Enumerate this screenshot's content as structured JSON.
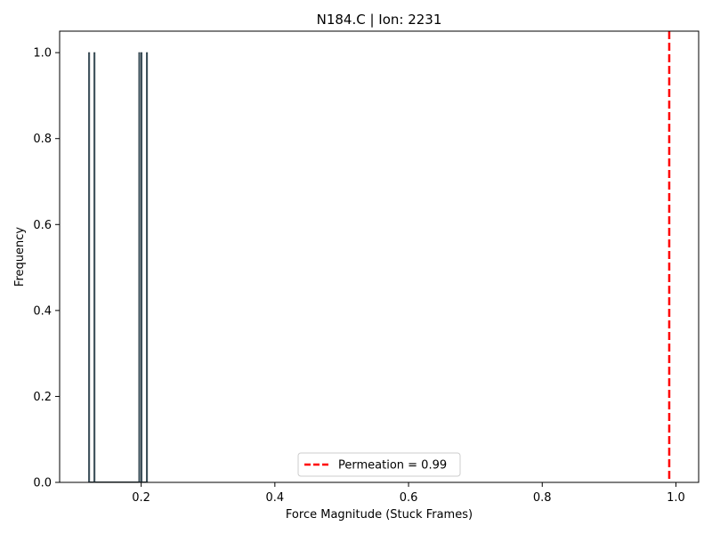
{
  "chart_data": {
    "type": "bar",
    "title": "N184.C | Ion: 2231",
    "xlabel": "Force Magnitude (Stuck Frames)",
    "ylabel": "Frequency",
    "xlim": [
      0.078,
      1.034
    ],
    "ylim": [
      0,
      1.05
    ],
    "xticks": [
      0.2,
      0.4,
      0.6,
      0.8,
      1.0
    ],
    "xtick_labels": [
      "0.2",
      "0.4",
      "0.6",
      "0.8",
      "1.0"
    ],
    "yticks": [
      0.0,
      0.2,
      0.4,
      0.6,
      0.8,
      1.0
    ],
    "ytick_labels": [
      "0.0",
      "0.2",
      "0.4",
      "0.6",
      "0.8",
      "1.0"
    ],
    "bar_width": 0.0017,
    "bars": [
      {
        "x": 0.1221,
        "y": 1
      },
      {
        "x": 0.1301,
        "y": 1
      },
      {
        "x": 0.1972,
        "y": 1
      },
      {
        "x": 0.2004,
        "y": 1
      },
      {
        "x": 0.2086,
        "y": 1
      }
    ],
    "bar_color": "#5f7d8c",
    "bar_edge_color": "#2f3f47",
    "reference_line": {
      "x": 0.99,
      "label": "Permeation = 0.99",
      "color": "#ff0000",
      "style": "dashed"
    },
    "legend": {
      "placement": "lower-center",
      "entries": [
        "Permeation = 0.99"
      ]
    },
    "grid": false
  }
}
